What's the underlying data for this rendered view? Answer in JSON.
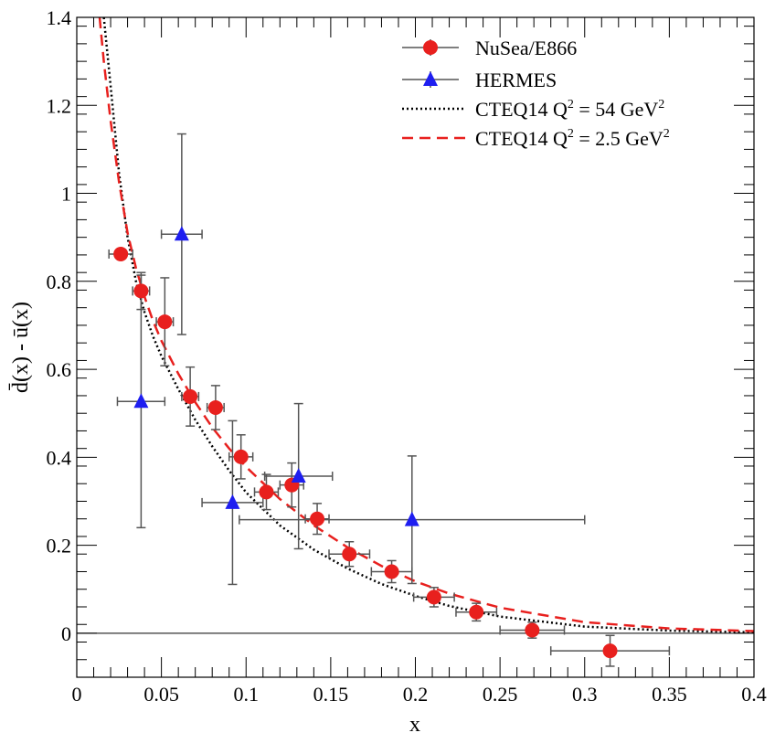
{
  "chart_data": {
    "type": "scatter",
    "xlabel": "x",
    "ylabel": "d̄(x) - ū(x)",
    "xlim": [
      0,
      0.4
    ],
    "ylim": [
      -0.1,
      1.4
    ],
    "xticks": [
      0,
      0.05,
      0.1,
      0.15,
      0.2,
      0.25,
      0.3,
      0.35,
      0.4
    ],
    "xtick_labels": [
      "0",
      "0.05",
      "0.1",
      "0.15",
      "0.2",
      "0.25",
      "0.3",
      "0.35",
      "0.4"
    ],
    "yticks": [
      0,
      0.2,
      0.4,
      0.6,
      0.8,
      1.0,
      1.2,
      1.4
    ],
    "ytick_labels": [
      "0",
      "0.2",
      "0.4",
      "0.6",
      "0.8",
      "1",
      "1.2",
      "1.4"
    ],
    "zero_line": 0,
    "legend_position": "top-right",
    "series": [
      {
        "name": "NuSea/E866",
        "marker": "circle",
        "color": "#e8201e",
        "points": [
          {
            "x": 0.026,
            "y": 0.862,
            "xerr": 0.007,
            "yerr": 0.0
          },
          {
            "x": 0.038,
            "y": 0.778,
            "xerr": 0.005,
            "yerr": 0.042
          },
          {
            "x": 0.052,
            "y": 0.708,
            "xerr": 0.005,
            "yerr": 0.1
          },
          {
            "x": 0.067,
            "y": 0.538,
            "xerr": 0.005,
            "yerr": 0.067
          },
          {
            "x": 0.082,
            "y": 0.513,
            "xerr": 0.005,
            "yerr": 0.05
          },
          {
            "x": 0.097,
            "y": 0.401,
            "xerr": 0.007,
            "yerr": 0.05
          },
          {
            "x": 0.112,
            "y": 0.321,
            "xerr": 0.007,
            "yerr": 0.04
          },
          {
            "x": 0.127,
            "y": 0.337,
            "xerr": 0.007,
            "yerr": 0.05
          },
          {
            "x": 0.142,
            "y": 0.26,
            "xerr": 0.007,
            "yerr": 0.035
          },
          {
            "x": 0.161,
            "y": 0.18,
            "xerr": 0.012,
            "yerr": 0.028
          },
          {
            "x": 0.186,
            "y": 0.14,
            "xerr": 0.012,
            "yerr": 0.025
          },
          {
            "x": 0.211,
            "y": 0.082,
            "xerr": 0.012,
            "yerr": 0.022
          },
          {
            "x": 0.236,
            "y": 0.048,
            "xerr": 0.012,
            "yerr": 0.02
          },
          {
            "x": 0.269,
            "y": 0.007,
            "xerr": 0.019,
            "yerr": 0.018
          },
          {
            "x": 0.315,
            "y": -0.04,
            "xerr": 0.035,
            "yerr": 0.035
          }
        ]
      },
      {
        "name": "HERMES",
        "marker": "triangle",
        "color": "#1e1ef0",
        "points": [
          {
            "x": 0.038,
            "y": 0.527,
            "xerr": 0.014,
            "yerr": 0.287
          },
          {
            "x": 0.062,
            "y": 0.907,
            "xerr": 0.012,
            "yerr": 0.228
          },
          {
            "x": 0.092,
            "y": 0.297,
            "xerr": 0.018,
            "yerr": 0.186
          },
          {
            "x": 0.131,
            "y": 0.357,
            "xerr": 0.02,
            "yerr": 0.165
          },
          {
            "x": 0.198,
            "y": 0.258,
            "xerr": 0.102,
            "yerr": 0.145
          }
        ]
      },
      {
        "name": "CTEQ14 Q² = 54 GeV²",
        "legend_main": "CTEQ14 Q",
        "legend_exp": "2",
        "legend_mid": " = 54 GeV",
        "legend_exp2": "2",
        "style": "dotted",
        "color": "#000000",
        "x": [
          0.016,
          0.02,
          0.025,
          0.03,
          0.035,
          0.04,
          0.045,
          0.05,
          0.06,
          0.07,
          0.08,
          0.09,
          0.1,
          0.12,
          0.14,
          0.16,
          0.18,
          0.2,
          0.22,
          0.25,
          0.3,
          0.35,
          0.4
        ],
        "y": [
          1.4,
          1.245,
          1.045,
          0.9,
          0.8,
          0.73,
          0.675,
          0.63,
          0.555,
          0.485,
          0.425,
          0.37,
          0.32,
          0.245,
          0.19,
          0.147,
          0.112,
          0.085,
          0.062,
          0.038,
          0.015,
          0.006,
          0.002
        ]
      },
      {
        "name": "CTEQ14 Q² = 2.5 GeV²",
        "legend_main": "CTEQ14 Q",
        "legend_exp": "2",
        "legend_mid": " = 2.5 GeV",
        "legend_exp2": "2",
        "style": "dashed",
        "color": "#e8201e",
        "x": [
          0.0135,
          0.016,
          0.02,
          0.025,
          0.03,
          0.035,
          0.04,
          0.045,
          0.05,
          0.06,
          0.07,
          0.08,
          0.09,
          0.1,
          0.12,
          0.14,
          0.16,
          0.18,
          0.2,
          0.22,
          0.25,
          0.3,
          0.35,
          0.4
        ],
        "y": [
          1.4,
          1.3,
          1.165,
          1.025,
          0.91,
          0.83,
          0.765,
          0.71,
          0.665,
          0.59,
          0.525,
          0.468,
          0.42,
          0.378,
          0.305,
          0.245,
          0.195,
          0.153,
          0.118,
          0.09,
          0.058,
          0.025,
          0.011,
          0.005
        ]
      }
    ]
  }
}
